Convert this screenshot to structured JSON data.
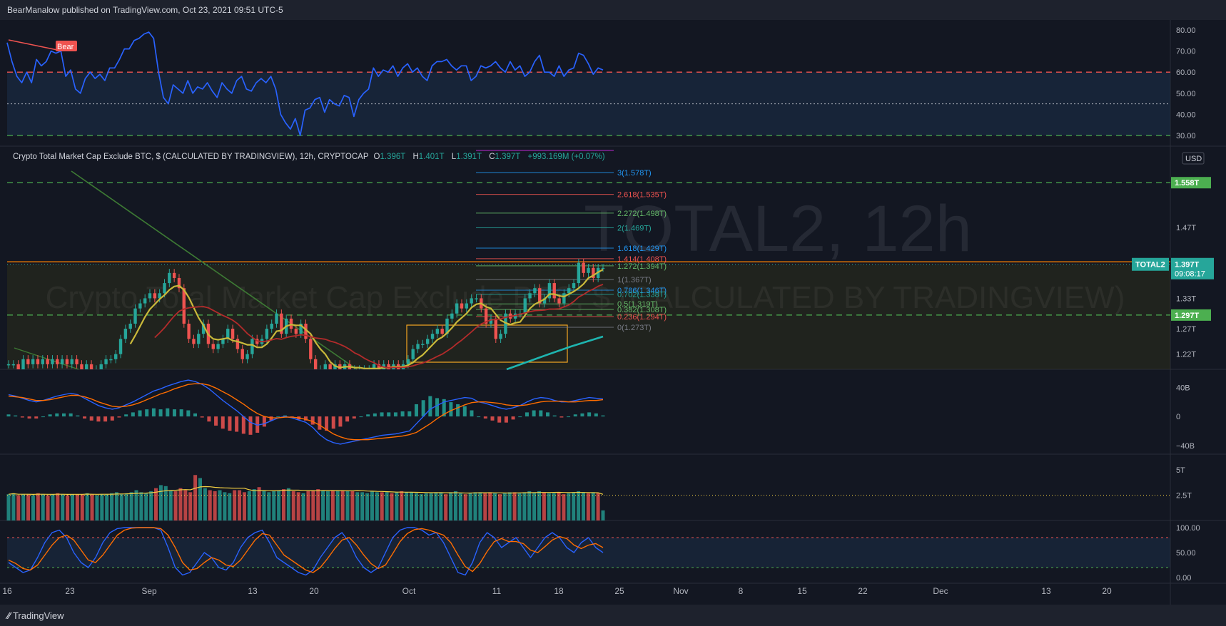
{
  "header": {
    "publisher": "BearManalow published on TradingView.com, Oct 23, 2021 09:51 UTC-5"
  },
  "legend": {
    "title": "Crypto Total Market Cap Exclude BTC, $ (CALCULATED BY TRADINGVIEW), 12h, CRYPTOCAP",
    "o_label": "O",
    "o": "1.396T",
    "h_label": "H",
    "h": "1.401T",
    "l_label": "L",
    "l": "1.391T",
    "c_label": "C",
    "c": "1.397T",
    "change": "+993.169M (+0.07%)"
  },
  "watermark": {
    "symbol": "TOTAL2, 12h",
    "name": "Crypto Total Market Cap Exclude BTC, $ (CALCULATED BY TRADINGVIEW)"
  },
  "currency_label": "USD",
  "footer": {
    "brand": "TradingView"
  },
  "colors": {
    "bg": "#131722",
    "up": "#26a69a",
    "down": "#ef5350",
    "rsi": "#2962ff",
    "ema20": "#c9b93a",
    "ema50": "#b32b2b",
    "ema200": "#1eb5b0"
  },
  "chart_data": [
    {
      "type": "line",
      "pane": "rsi-top",
      "y_ticks": [
        "80.00",
        "70.00",
        "60.00",
        "50.00",
        "40.00",
        "30.00"
      ],
      "ylim": [
        30,
        80
      ],
      "levels": [
        60,
        45,
        30
      ],
      "annotation": "Bear",
      "series": [
        {
          "values": [
            74,
            65,
            58,
            55,
            60,
            55,
            66,
            63,
            65,
            70,
            69,
            70,
            58,
            61,
            52,
            50,
            57,
            60,
            57,
            59,
            56,
            62,
            62,
            66,
            71,
            71,
            75,
            76,
            78,
            79,
            76,
            60,
            48,
            45,
            54,
            52,
            50,
            56,
            50,
            53,
            52,
            55,
            51,
            48,
            55,
            52,
            50,
            56,
            58,
            52,
            51,
            55,
            57,
            55,
            58,
            52,
            40,
            36,
            33,
            38,
            30,
            42,
            43,
            47,
            48,
            41,
            47,
            45,
            44,
            49,
            48,
            39,
            47,
            50,
            52,
            62,
            58,
            61,
            60,
            63,
            58,
            62,
            64,
            60,
            62,
            58,
            56,
            63,
            65,
            65,
            66,
            63,
            61,
            63,
            63,
            56,
            58,
            63,
            62,
            63,
            65,
            62,
            60,
            65,
            61,
            63,
            58,
            60,
            65,
            68,
            60,
            60,
            58,
            63,
            58,
            61,
            62,
            69,
            68,
            64,
            59,
            62,
            61
          ]
        }
      ]
    },
    {
      "type": "candlestick",
      "pane": "price",
      "y_ticks": [
        "1.47T",
        "1.33T",
        "1.27T",
        "1.22T"
      ],
      "ylim": [
        1.19,
        1.63
      ],
      "price_labels": [
        {
          "text": "1.558T",
          "value": 1.558
        },
        {
          "text": "1.297T",
          "value": 1.297
        }
      ],
      "last_price": {
        "symbol": "TOTAL2",
        "price": "1.397T",
        "countdown": "09:08:17",
        "value": 1.397
      },
      "fib_levels": [
        {
          "label": "3(1.578T)",
          "value": 1.578
        },
        {
          "label": "2.618(1.535T)",
          "value": 1.535
        },
        {
          "label": "2.272(1.498T)",
          "value": 1.498
        },
        {
          "label": "2(1.469T)",
          "value": 1.469
        },
        {
          "label": "1.618(1.429T)",
          "value": 1.429
        },
        {
          "label": "1.414(1.408T)",
          "value": 1.408
        },
        {
          "label": "1.272(1.394T)",
          "value": 1.394
        },
        {
          "label": "1(1.367T)",
          "value": 1.367
        },
        {
          "label": "0.786(1.346T)",
          "value": 1.346
        },
        {
          "label": "0.702(1.338T)",
          "value": 1.338
        },
        {
          "label": "0.5(1.319T)",
          "value": 1.319
        },
        {
          "label": "0.382(1.308T)",
          "value": 1.308
        },
        {
          "label": "0.236(1.294T)",
          "value": 1.294
        },
        {
          "label": "0(1.273T)",
          "value": 1.273
        }
      ],
      "closes": [
        1.2,
        1.2,
        1.19,
        1.21,
        1.2,
        1.21,
        1.2,
        1.21,
        1.2,
        1.21,
        1.2,
        1.21,
        1.2,
        1.21,
        1.2,
        1.19,
        1.2,
        1.19,
        1.19,
        1.2,
        1.21,
        1.21,
        1.22,
        1.25,
        1.27,
        1.28,
        1.31,
        1.32,
        1.33,
        1.34,
        1.33,
        1.34,
        1.36,
        1.38,
        1.37,
        1.35,
        1.28,
        1.25,
        1.24,
        1.26,
        1.28,
        1.24,
        1.23,
        1.24,
        1.25,
        1.27,
        1.25,
        1.23,
        1.21,
        1.22,
        1.25,
        1.24,
        1.25,
        1.27,
        1.28,
        1.3,
        1.26,
        1.29,
        1.27,
        1.26,
        1.28,
        1.25,
        1.21,
        1.19,
        1.19,
        1.2,
        1.19,
        1.2,
        1.19,
        1.2,
        1.19,
        1.19,
        1.19,
        1.19,
        1.19,
        1.2,
        1.19,
        1.2,
        1.19,
        1.2,
        1.19,
        1.2,
        1.21,
        1.23,
        1.24,
        1.24,
        1.25,
        1.26,
        1.27,
        1.26,
        1.29,
        1.3,
        1.32,
        1.31,
        1.32,
        1.33,
        1.33,
        1.31,
        1.28,
        1.29,
        1.25,
        1.26,
        1.3,
        1.29,
        1.3,
        1.3,
        1.33,
        1.34,
        1.35,
        1.32,
        1.33,
        1.36,
        1.33,
        1.32,
        1.34,
        1.35,
        1.36,
        1.4,
        1.38,
        1.39,
        1.37,
        1.39,
        1.39
      ]
    },
    {
      "type": "line",
      "pane": "macd",
      "y_ticks": [
        "40B",
        "0",
        "−40B"
      ],
      "ylim": [
        -45,
        55
      ],
      "series": [
        {
          "values": [
            30,
            28,
            25,
            22,
            20,
            22,
            25,
            28,
            30,
            32,
            30,
            25,
            20,
            15,
            12,
            10,
            12,
            16,
            20,
            25,
            30,
            35,
            38,
            42,
            45,
            48,
            50,
            48,
            44,
            38,
            30,
            22,
            15,
            8,
            0,
            -8,
            -12,
            -10,
            -6,
            -2,
            0,
            -2,
            -5,
            -8,
            -15,
            -25,
            -32,
            -36,
            -38,
            -36,
            -34,
            -32,
            -30,
            -28,
            -26,
            -25,
            -24,
            -22,
            -20,
            -10,
            0,
            10,
            15,
            20,
            22,
            24,
            26,
            25,
            20,
            18,
            15,
            12,
            10,
            12,
            15,
            20,
            24,
            26,
            25,
            22,
            20,
            20,
            22,
            24,
            26,
            25,
            24
          ]
        },
        {
          "values": [
            28,
            27,
            26,
            24,
            22,
            22,
            23,
            25,
            27,
            29,
            29,
            27,
            24,
            20,
            17,
            14,
            13,
            14,
            16,
            19,
            23,
            27,
            31,
            34,
            38,
            41,
            44,
            45,
            45,
            43,
            39,
            34,
            29,
            23,
            17,
            10,
            4,
            0,
            -2,
            -2,
            -1,
            -1,
            -2,
            -4,
            -7,
            -12,
            -18,
            -24,
            -28,
            -31,
            -32,
            -32,
            -32,
            -31,
            -30,
            -29,
            -28,
            -27,
            -25,
            -22,
            -16,
            -10,
            -3,
            3,
            8,
            12,
            16,
            19,
            20,
            20,
            19,
            18,
            16,
            15,
            15,
            16,
            18,
            20,
            21,
            21,
            21,
            20,
            20,
            21,
            22,
            22,
            23
          ]
        }
      ]
    },
    {
      "type": "bar",
      "pane": "volume",
      "y_ticks": [
        "5T",
        "2.5T"
      ],
      "ylim": [
        0,
        6
      ],
      "values": [
        2.6,
        2.7,
        2.5,
        2.6,
        2.6,
        2.5,
        2.7,
        2.6,
        2.5,
        2.6,
        2.7,
        2.6,
        2.5,
        2.6,
        2.6,
        2.6,
        2.7,
        2.6,
        2.5,
        2.6,
        2.6,
        2.7,
        2.8,
        2.6,
        2.7,
        2.8,
        3.0,
        2.8,
        2.7,
        2.9,
        3.2,
        3.5,
        3.4,
        3.0,
        2.9,
        3.2,
        3.0,
        2.8,
        4.5,
        4.2,
        3.2,
        3.0,
        2.9,
        3.0,
        2.8,
        2.7,
        3.0,
        3.0,
        2.8,
        2.9,
        3.1,
        3.3,
        3.0,
        2.8,
        2.9,
        3.0,
        3.1,
        3.2,
        2.9,
        2.8,
        2.7,
        2.9,
        3.0,
        3.1,
        3.0,
        2.9,
        3.0,
        3.0,
        3.0,
        2.9,
        2.9,
        2.8,
        2.8,
        2.7,
        2.9,
        2.8,
        2.8,
        2.8,
        2.7,
        2.8,
        2.9,
        2.8,
        2.8,
        2.7,
        2.6,
        2.7,
        2.7,
        2.8,
        2.8,
        2.6,
        2.8,
        2.9,
        2.7,
        2.6,
        2.7,
        2.8,
        2.8,
        2.7,
        2.8,
        2.7,
        2.6,
        2.7,
        2.8,
        2.8,
        2.7,
        2.8,
        2.9,
        2.8,
        2.9,
        2.8,
        2.7,
        2.7,
        2.8,
        2.6,
        2.7,
        2.8,
        2.9,
        2.8,
        2.7,
        2.8,
        2.7,
        1.0
      ]
    },
    {
      "type": "line",
      "pane": "stoch-rsi",
      "y_ticks": [
        "100.00",
        "50.00",
        "0.00"
      ],
      "ylim": [
        0,
        100
      ],
      "levels": [
        80,
        20
      ],
      "series": [
        {
          "values": [
            30,
            20,
            10,
            15,
            40,
            70,
            90,
            95,
            80,
            50,
            30,
            20,
            40,
            70,
            90,
            98,
            100,
            100,
            100,
            100,
            100,
            95,
            60,
            20,
            5,
            10,
            30,
            50,
            40,
            20,
            15,
            30,
            60,
            80,
            90,
            95,
            70,
            40,
            30,
            20,
            10,
            5,
            15,
            40,
            60,
            80,
            90,
            70,
            40,
            20,
            10,
            20,
            50,
            80,
            95,
            100,
            100,
            95,
            85,
            90,
            70,
            40,
            10,
            5,
            30,
            70,
            90,
            80,
            60,
            70,
            80,
            60,
            40,
            60,
            80,
            90,
            80,
            60,
            50,
            70,
            80,
            60,
            50
          ]
        },
        {
          "values": [
            35,
            28,
            18,
            15,
            25,
            45,
            65,
            80,
            85,
            75,
            55,
            35,
            30,
            45,
            65,
            85,
            95,
            99,
            100,
            100,
            100,
            98,
            85,
            60,
            30,
            15,
            18,
            30,
            40,
            35,
            25,
            22,
            35,
            55,
            75,
            88,
            85,
            65,
            45,
            35,
            25,
            15,
            10,
            20,
            38,
            58,
            75,
            80,
            65,
            45,
            28,
            18,
            25,
            48,
            72,
            88,
            96,
            98,
            95,
            90,
            85,
            70,
            45,
            22,
            12,
            28,
            52,
            72,
            78,
            72,
            72,
            68,
            55,
            50,
            62,
            75,
            82,
            78,
            65,
            58,
            65,
            68,
            60
          ]
        }
      ]
    }
  ],
  "x_axis": {
    "labels": [
      "16",
      "23",
      "Sep",
      "13",
      "20",
      "Oct",
      "11",
      "18",
      "25",
      "Nov",
      "8",
      "15",
      "22",
      "Dec",
      "13",
      "20"
    ]
  }
}
